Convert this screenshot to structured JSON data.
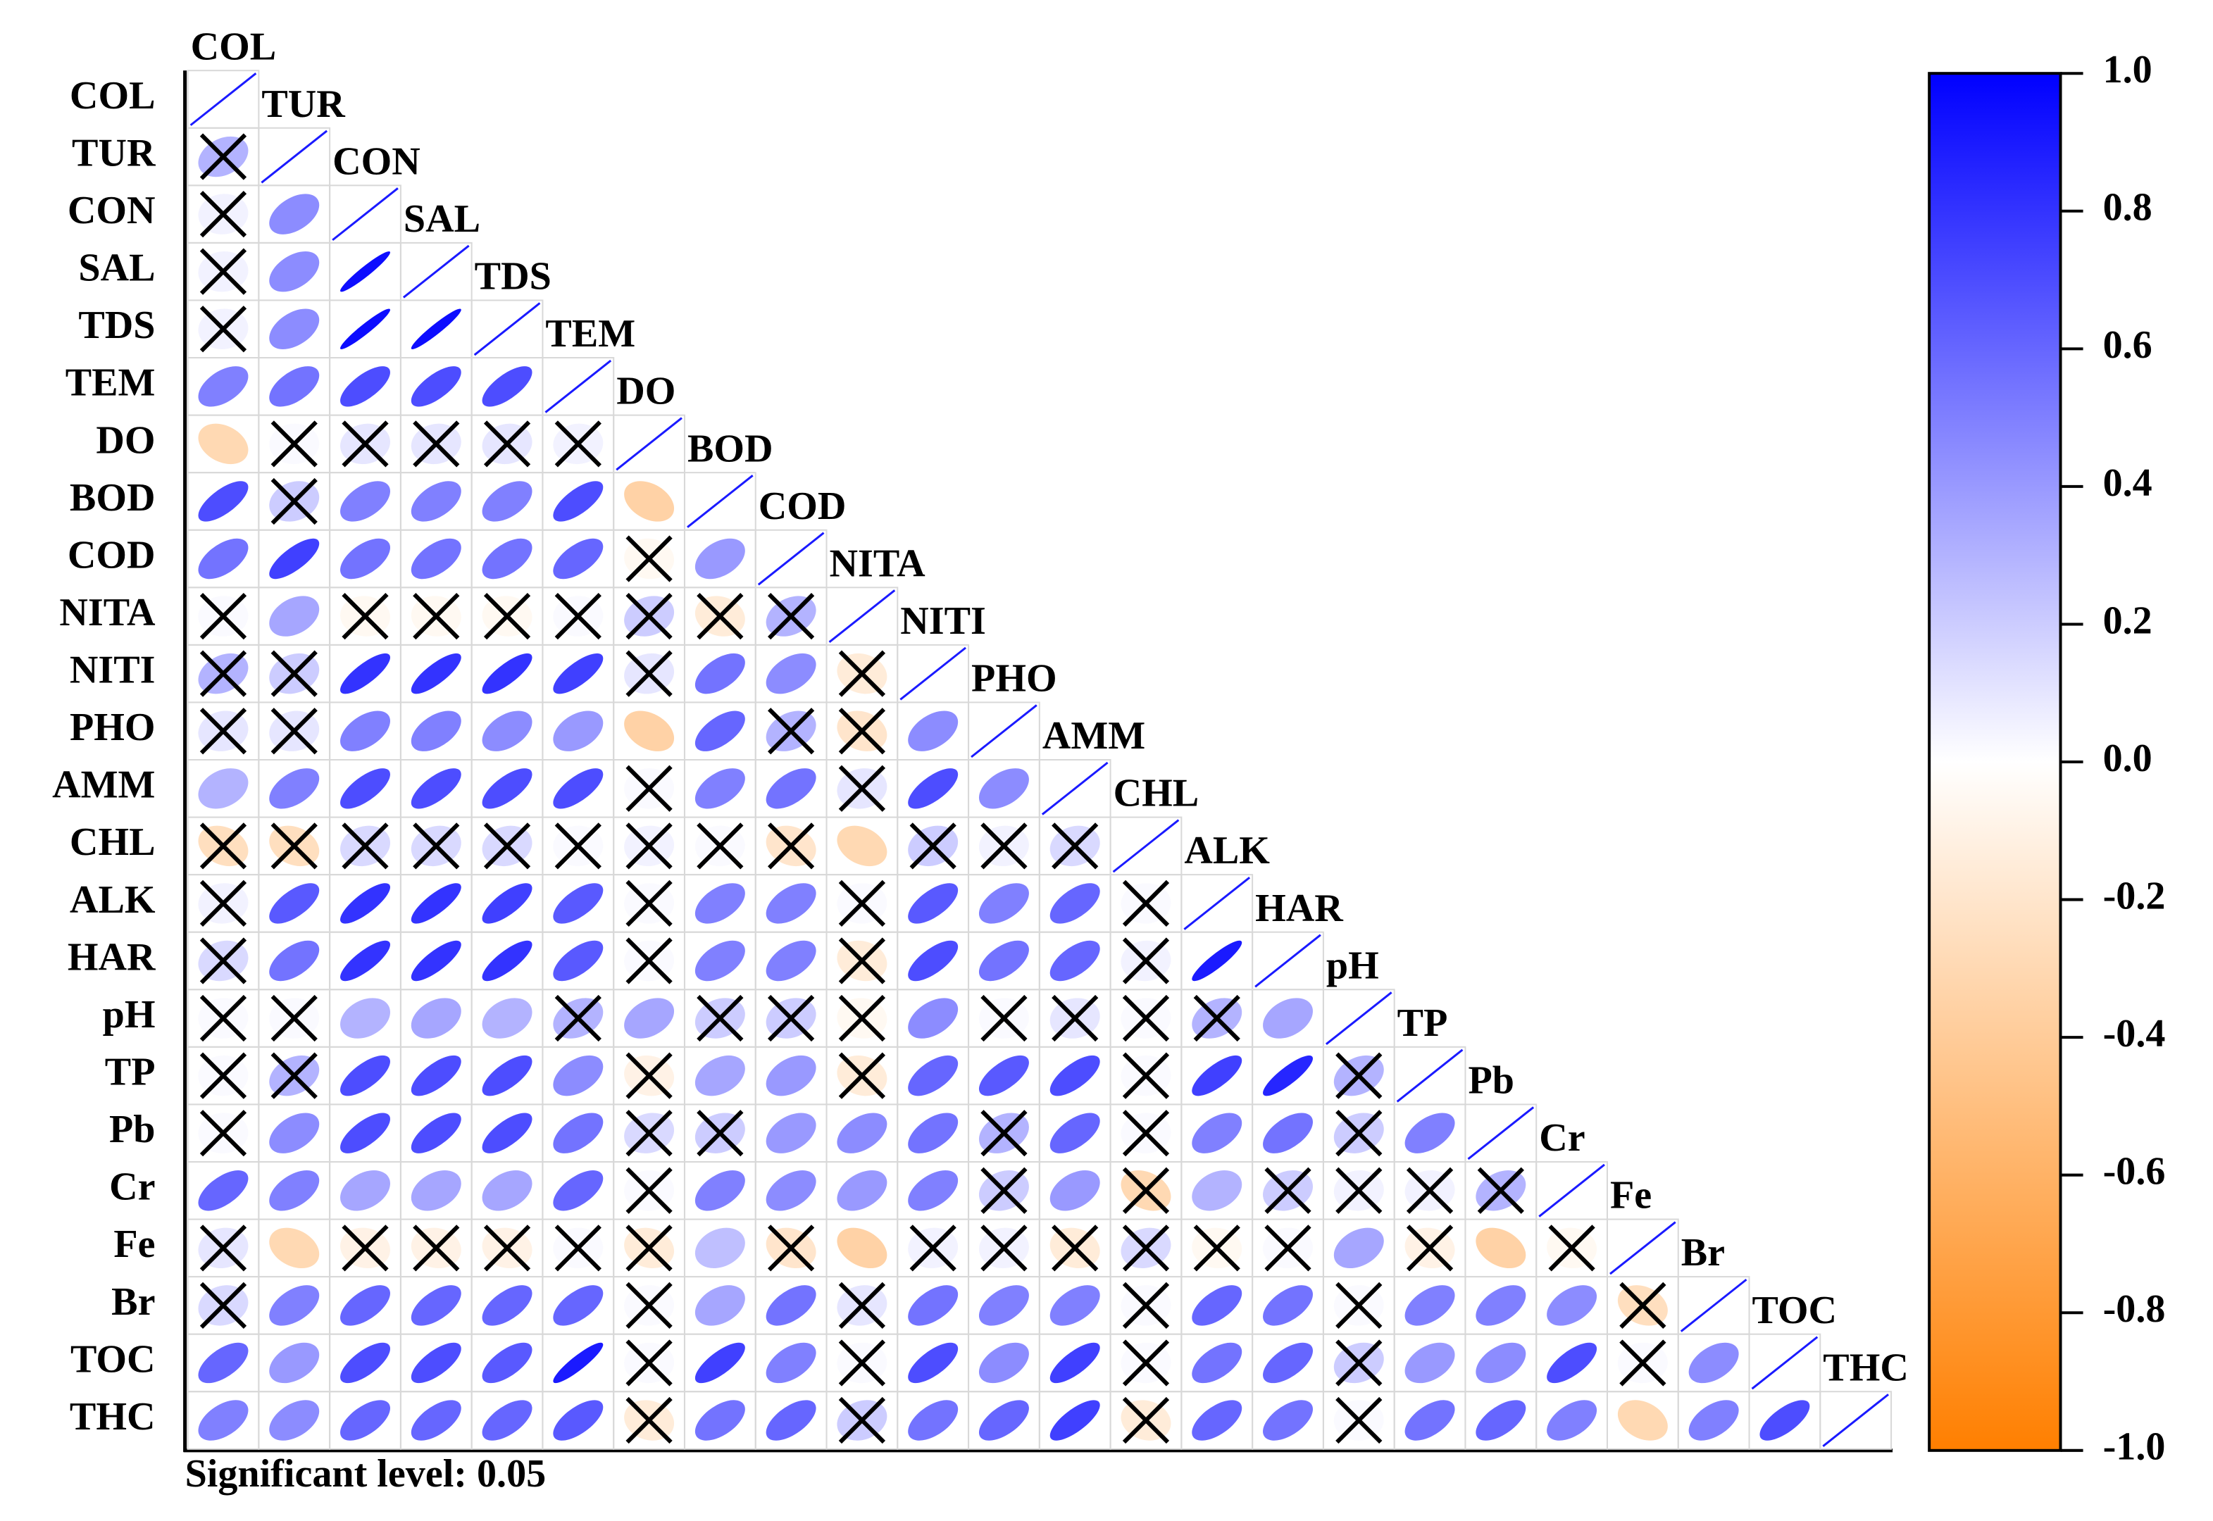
{
  "chart_data": {
    "type": "corrplot",
    "variables": [
      "COL",
      "TUR",
      "CON",
      "SAL",
      "TDS",
      "TEM",
      "DO",
      "BOD",
      "COD",
      "NITA",
      "NITI",
      "PHO",
      "AMM",
      "CHL",
      "ALK",
      "HAR",
      "pH",
      "TP",
      "Pb",
      "Cr",
      "Fe",
      "Br",
      "TOC",
      "THC"
    ],
    "values": [
      [
        1
      ],
      [
        0.3,
        1
      ],
      [
        0.05,
        0.45,
        1
      ],
      [
        0.05,
        0.45,
        0.95,
        1
      ],
      [
        0.05,
        0.45,
        0.95,
        0.95,
        1
      ],
      [
        0.5,
        0.55,
        0.7,
        0.7,
        0.7,
        1
      ],
      [
        -0.3,
        0.02,
        0.1,
        0.1,
        0.1,
        0.05,
        1
      ],
      [
        0.7,
        0.2,
        0.5,
        0.5,
        0.5,
        0.7,
        -0.35,
        1
      ],
      [
        0.55,
        0.75,
        0.55,
        0.55,
        0.55,
        0.6,
        -0.05,
        0.4,
        1
      ],
      [
        0.02,
        0.35,
        -0.05,
        -0.05,
        -0.05,
        0.02,
        0.2,
        -0.15,
        0.3,
        1
      ],
      [
        0.3,
        0.2,
        0.8,
        0.8,
        0.8,
        0.75,
        0.1,
        0.55,
        0.45,
        -0.15,
        1
      ],
      [
        0.1,
        0.1,
        0.5,
        0.5,
        0.45,
        0.4,
        -0.35,
        0.6,
        0.3,
        -0.2,
        0.45,
        1
      ],
      [
        0.3,
        0.5,
        0.7,
        0.7,
        0.7,
        0.7,
        0.02,
        0.5,
        0.55,
        0.1,
        0.7,
        0.45,
        1
      ],
      [
        -0.25,
        -0.25,
        0.15,
        0.15,
        0.15,
        0.02,
        0.05,
        0.02,
        -0.2,
        -0.3,
        0.2,
        0.05,
        0.15,
        1
      ],
      [
        0.05,
        0.65,
        0.8,
        0.8,
        0.75,
        0.65,
        0.02,
        0.5,
        0.5,
        0.02,
        0.65,
        0.5,
        0.6,
        0.02,
        1
      ],
      [
        0.15,
        0.55,
        0.8,
        0.8,
        0.8,
        0.65,
        0.02,
        0.5,
        0.5,
        -0.15,
        0.7,
        0.55,
        0.6,
        0.05,
        0.9,
        1
      ],
      [
        0.02,
        0.02,
        0.3,
        0.35,
        0.3,
        0.3,
        0.35,
        0.2,
        0.2,
        -0.05,
        0.45,
        0.02,
        0.1,
        0.02,
        0.3,
        0.35,
        1
      ],
      [
        0.02,
        0.3,
        0.7,
        0.7,
        0.7,
        0.45,
        -0.1,
        0.35,
        0.4,
        -0.15,
        0.6,
        0.65,
        0.7,
        0.02,
        0.75,
        0.85,
        0.3,
        1
      ],
      [
        0.02,
        0.45,
        0.7,
        0.7,
        0.7,
        0.55,
        0.15,
        0.2,
        0.4,
        0.45,
        0.55,
        0.3,
        0.6,
        0.02,
        0.5,
        0.55,
        0.2,
        0.5,
        1
      ],
      [
        0.6,
        0.5,
        0.35,
        0.35,
        0.35,
        0.6,
        0.02,
        0.5,
        0.45,
        0.4,
        0.5,
        0.2,
        0.4,
        -0.3,
        0.3,
        0.2,
        0.05,
        0.05,
        0.3,
        1
      ],
      [
        0.1,
        -0.3,
        -0.1,
        -0.1,
        -0.1,
        0.02,
        -0.15,
        0.25,
        -0.2,
        -0.35,
        0.05,
        0.05,
        -0.15,
        0.15,
        -0.05,
        0.02,
        0.35,
        -0.1,
        -0.35,
        -0.05,
        1
      ],
      [
        0.15,
        0.5,
        0.6,
        0.6,
        0.6,
        0.6,
        0.02,
        0.35,
        0.55,
        0.1,
        0.55,
        0.5,
        0.5,
        0.02,
        0.6,
        0.55,
        0.02,
        0.5,
        0.5,
        0.45,
        -0.25,
        1
      ],
      [
        0.6,
        0.4,
        0.7,
        0.7,
        0.65,
        0.9,
        0.02,
        0.75,
        0.5,
        0.02,
        0.7,
        0.45,
        0.75,
        0.02,
        0.55,
        0.6,
        0.2,
        0.4,
        0.45,
        0.7,
        0.02,
        0.45,
        1
      ],
      [
        0.5,
        0.45,
        0.6,
        0.6,
        0.6,
        0.65,
        -0.15,
        0.55,
        0.6,
        0.2,
        0.55,
        0.6,
        0.75,
        -0.15,
        0.6,
        0.55,
        0.02,
        0.55,
        0.6,
        0.5,
        -0.3,
        0.5,
        0.7,
        1
      ]
    ],
    "insignificant": [
      [
        false
      ],
      [
        true,
        false
      ],
      [
        true,
        false,
        false
      ],
      [
        true,
        false,
        false,
        false
      ],
      [
        true,
        false,
        false,
        false,
        false
      ],
      [
        false,
        false,
        false,
        false,
        false,
        false
      ],
      [
        false,
        true,
        true,
        true,
        true,
        true,
        false
      ],
      [
        false,
        true,
        false,
        false,
        false,
        false,
        false,
        false
      ],
      [
        false,
        false,
        false,
        false,
        false,
        false,
        true,
        false,
        false
      ],
      [
        true,
        false,
        true,
        true,
        true,
        true,
        true,
        true,
        true,
        false
      ],
      [
        true,
        true,
        false,
        false,
        false,
        false,
        true,
        false,
        false,
        true,
        false
      ],
      [
        true,
        true,
        false,
        false,
        false,
        false,
        false,
        false,
        true,
        true,
        false,
        false
      ],
      [
        false,
        false,
        false,
        false,
        false,
        false,
        true,
        false,
        false,
        true,
        false,
        false,
        false
      ],
      [
        true,
        true,
        true,
        true,
        true,
        true,
        true,
        true,
        true,
        false,
        true,
        true,
        true,
        false
      ],
      [
        true,
        false,
        false,
        false,
        false,
        false,
        true,
        false,
        false,
        true,
        false,
        false,
        false,
        true,
        false
      ],
      [
        true,
        false,
        false,
        false,
        false,
        false,
        true,
        false,
        false,
        true,
        false,
        false,
        false,
        true,
        false,
        false
      ],
      [
        true,
        true,
        false,
        false,
        false,
        true,
        false,
        true,
        true,
        true,
        false,
        true,
        true,
        true,
        true,
        false,
        false
      ],
      [
        true,
        true,
        false,
        false,
        false,
        false,
        true,
        false,
        false,
        true,
        false,
        false,
        false,
        true,
        false,
        false,
        true,
        false
      ],
      [
        true,
        false,
        false,
        false,
        false,
        false,
        true,
        true,
        false,
        false,
        false,
        true,
        false,
        true,
        false,
        false,
        true,
        false,
        false
      ],
      [
        false,
        false,
        false,
        false,
        false,
        false,
        true,
        false,
        false,
        false,
        false,
        true,
        false,
        true,
        false,
        true,
        true,
        true,
        true,
        false
      ],
      [
        true,
        false,
        true,
        true,
        true,
        true,
        true,
        false,
        true,
        false,
        true,
        true,
        true,
        true,
        true,
        true,
        false,
        true,
        false,
        true,
        false
      ],
      [
        true,
        false,
        false,
        false,
        false,
        false,
        true,
        false,
        false,
        true,
        false,
        false,
        false,
        true,
        false,
        false,
        true,
        false,
        false,
        false,
        true,
        false
      ],
      [
        false,
        false,
        false,
        false,
        false,
        false,
        true,
        false,
        false,
        true,
        false,
        false,
        false,
        true,
        false,
        false,
        true,
        false,
        false,
        false,
        true,
        false,
        false
      ],
      [
        false,
        false,
        false,
        false,
        false,
        false,
        true,
        false,
        false,
        true,
        false,
        false,
        false,
        true,
        false,
        false,
        true,
        false,
        false,
        false,
        false,
        false,
        false,
        false
      ]
    ],
    "colormap": [
      "#ff7f00",
      "#ffffff",
      "#0000ff"
    ],
    "clim": [
      -1,
      1
    ],
    "cticks": [
      {
        "value": 1,
        "label": "1.0"
      },
      0.8,
      0.6,
      0.4,
      0.2,
      {
        "value": 0,
        "label": "0.0"
      },
      -0.2,
      -0.4,
      -0.6,
      -0.8,
      {
        "value": -1,
        "label": "-1.0"
      }
    ],
    "footnote": "Significant level: 0.05"
  }
}
